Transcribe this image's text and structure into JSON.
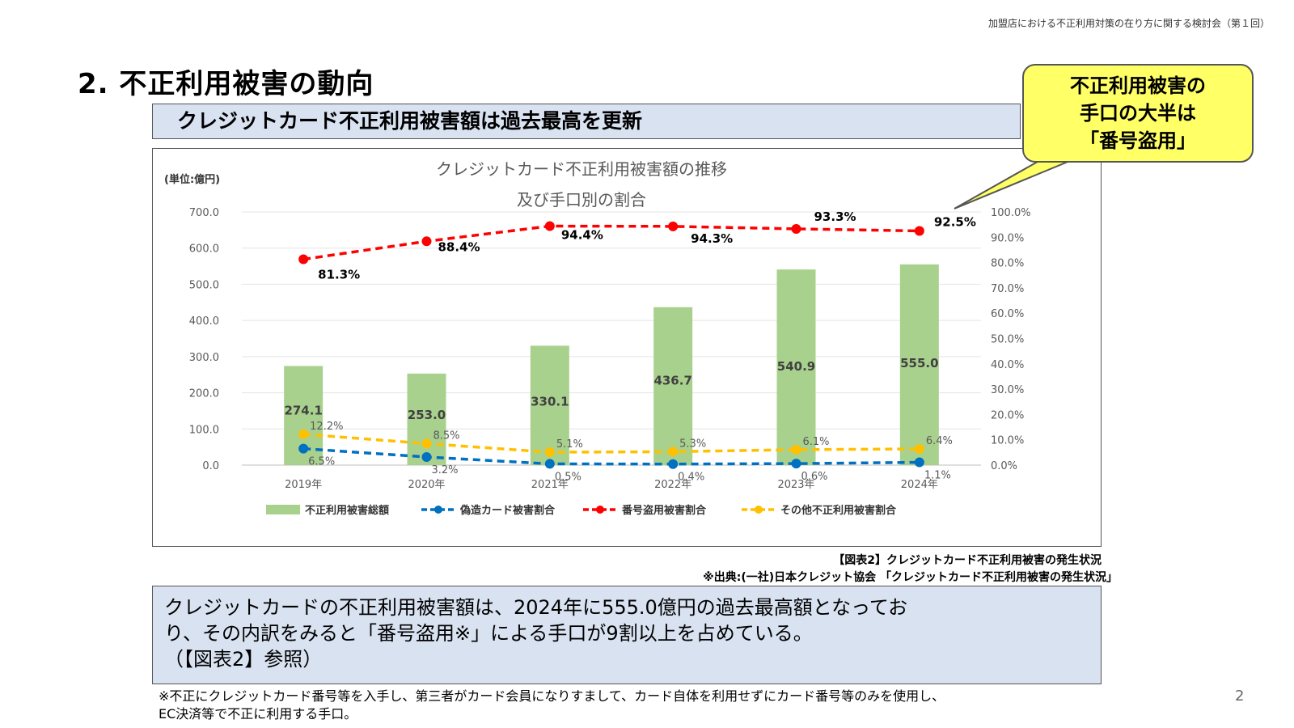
{
  "header_note": "加盟店における不正利用対策の在り方に関する検討会（第１回）",
  "page_title": "2. 不正利用被害の動向",
  "subtitle": "クレジットカード不正利用被害額は過去最高を更新",
  "callout": {
    "line1": "不正利用被害の",
    "line2": "手口の大半は",
    "line3": "「番号盗用」",
    "fill_color": "#ffff66"
  },
  "figure_caption": "【図表2】クレジットカード不正利用被害の発生状況",
  "figure_source": "※出典:(一社)日本クレジット協会 「クレジットカード不正利用被害の発生状況」",
  "summary": {
    "line1": "クレジットカードの不正利用被害額は、2024年に555.0億円の過去最高額となってお",
    "line2": "り、その内訳をみると「番号盗用※」による手口が9割以上を占めている。",
    "line3": "（【図表2】参照）"
  },
  "footnote": {
    "line1": "※不正にクレジットカード番号等を入手し、第三者がカード会員になりすまして、カード自体を利用せずにカード番号等のみを使用し、",
    "line2": "EC決済等で不正に利用する手口。"
  },
  "page_number": "2",
  "chart_data": {
    "type": "bar",
    "title_line1": "クレジットカード不正利用被害額の推移",
    "title_line2": "及び手口別の割合",
    "ylabel": "(単位:億円)",
    "categories": [
      "2019年",
      "2020年",
      "2021年",
      "2022年",
      "2023年",
      "2024年"
    ],
    "ylim": [
      0,
      700
    ],
    "y_ticks": [
      "0.0",
      "100.0",
      "200.0",
      "300.0",
      "400.0",
      "500.0",
      "600.0",
      "700.0"
    ],
    "y2lim": [
      0,
      100
    ],
    "y2_ticks": [
      "0.0%",
      "10.0%",
      "20.0%",
      "30.0%",
      "40.0%",
      "50.0%",
      "60.0%",
      "70.0%",
      "80.0%",
      "90.0%",
      "100.0%"
    ],
    "bar_series": {
      "name": "不正利用被害総額",
      "values": [
        274.1,
        253.0,
        330.1,
        436.7,
        540.9,
        555.0
      ],
      "labels": [
        "274.1",
        "253.0",
        "330.1",
        "436.7",
        "540.9",
        "555.0"
      ],
      "color": "#a9d18e"
    },
    "line_series": [
      {
        "name": "偽造カード被害割合",
        "values": [
          6.5,
          3.2,
          0.5,
          0.4,
          0.6,
          1.1
        ],
        "labels": [
          "6.5%",
          "3.2%",
          "0.5%",
          "0.4%",
          "0.6%",
          "1.1%"
        ],
        "color": "#0070c0"
      },
      {
        "name": "番号盗用被害割合",
        "values": [
          81.3,
          88.4,
          94.4,
          94.3,
          93.3,
          92.5
        ],
        "labels": [
          "81.3%",
          "88.4%",
          "94.4%",
          "94.3%",
          "93.3%",
          "92.5%"
        ],
        "color": "#ff0000"
      },
      {
        "name": "その他不正利用被害割合",
        "values": [
          12.2,
          8.5,
          5.1,
          5.3,
          6.1,
          6.4
        ],
        "labels": [
          "12.2%",
          "8.5%",
          "5.1%",
          "5.3%",
          "6.1%",
          "6.4%"
        ],
        "color": "#ffc000"
      }
    ],
    "grid": true,
    "legend_position": "bottom"
  }
}
